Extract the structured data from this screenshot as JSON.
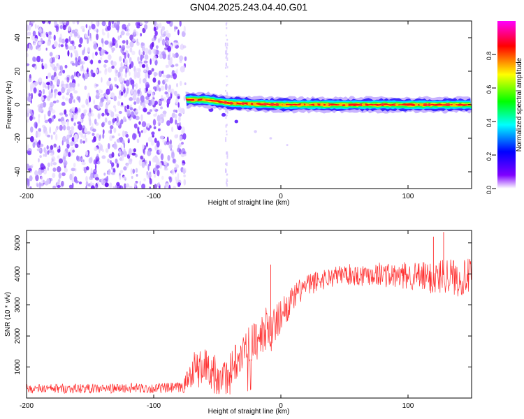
{
  "chart_data": [
    {
      "type": "heatmap",
      "title": "GN04.2025.243.04.40.G01",
      "xlabel": "Height of straight line (km)",
      "ylabel": "Frequency (Hz)",
      "xlim": [
        -200,
        150
      ],
      "ylim": [
        -50,
        50
      ],
      "xticks": [
        -200,
        -100,
        0,
        100
      ],
      "yticks": [
        -40,
        -20,
        0,
        20,
        40
      ],
      "noise_region_x": [
        -200,
        -75
      ],
      "faint_column_x": -43,
      "trace": [
        {
          "x": -75,
          "freq": 3,
          "amp": 0.8
        },
        {
          "x": -60,
          "freq": 3,
          "amp": 0.9
        },
        {
          "x": -50,
          "freq": 2,
          "amp": 0.9
        },
        {
          "x": -40,
          "freq": 1,
          "amp": 0.9
        },
        {
          "x": 0,
          "freq": 0,
          "amp": 1.0
        },
        {
          "x": 50,
          "freq": 0,
          "amp": 1.0
        },
        {
          "x": 100,
          "freq": 0,
          "amp": 1.0
        },
        {
          "x": 150,
          "freq": 0,
          "amp": 1.0
        }
      ],
      "echo_tail": [
        {
          "x": -55,
          "freq": -3
        },
        {
          "x": -45,
          "freq": -6
        },
        {
          "x": -35,
          "freq": -10
        },
        {
          "x": -20,
          "freq": -16
        },
        {
          "x": -8,
          "freq": -20
        },
        {
          "x": 5,
          "freq": -24
        }
      ],
      "colorbar": {
        "label": "Normalized spectral amplitude",
        "range": [
          0,
          1
        ],
        "ticks": [
          "0.0",
          "0.2",
          "0.4",
          "0.6",
          "0.8"
        ],
        "colors": [
          "#ffffff",
          "#7f00ff",
          "#0000ff",
          "#00ffff",
          "#00ff00",
          "#ffff00",
          "#ff0000",
          "#ff00ff"
        ]
      }
    },
    {
      "type": "line",
      "xlabel": "Height of straight line (km)",
      "ylabel": "SNR (10 * v/v)",
      "xlim": [
        -200,
        150
      ],
      "ylim": [
        0,
        5400
      ],
      "xticks": [
        -200,
        -100,
        0,
        100
      ],
      "yticks": [
        1000,
        2000,
        3000,
        4000,
        5000
      ],
      "color": "#ff3030",
      "series": [
        {
          "name": "SNR",
          "x": [
            -200,
            -180,
            -160,
            -140,
            -120,
            -100,
            -90,
            -80,
            -76,
            -72,
            -68,
            -64,
            -60,
            -56,
            -52,
            -48,
            -44,
            -40,
            -36,
            -32,
            -28,
            -24,
            -20,
            -16,
            -14,
            -12,
            -10,
            -8,
            -6,
            -4,
            -2,
            0,
            4,
            8,
            12,
            16,
            20,
            25,
            30,
            35,
            40,
            45,
            50,
            60,
            70,
            80,
            90,
            100,
            110,
            120,
            130,
            140,
            150
          ],
          "values": [
            300,
            300,
            310,
            300,
            320,
            310,
            320,
            330,
            400,
            700,
            1000,
            900,
            1100,
            800,
            900,
            600,
            700,
            900,
            1200,
            1500,
            1600,
            1700,
            1850,
            1900,
            2100,
            2200,
            2400,
            2000,
            2300,
            2400,
            2500,
            2700,
            2900,
            3100,
            3300,
            3500,
            3600,
            3700,
            3800,
            3850,
            3900,
            3950,
            4000,
            3950,
            4000,
            4000,
            3900,
            3950,
            3900,
            3850,
            4000,
            3850,
            3950
          ],
          "spread": [
            150,
            150,
            160,
            150,
            160,
            160,
            170,
            180,
            250,
            400,
            550,
            600,
            600,
            550,
            550,
            450,
            500,
            550,
            650,
            650,
            650,
            650,
            650,
            650,
            700,
            700,
            700,
            650,
            650,
            600,
            600,
            550,
            500,
            450,
            420,
            400,
            380,
            360,
            350,
            340,
            330,
            330,
            330,
            360,
            380,
            400,
            420,
            450,
            500,
            550,
            600,
            600,
            550
          ]
        }
      ],
      "spikes": [
        {
          "x": -8,
          "value": 4300
        },
        {
          "x": 120,
          "value": 5200
        },
        {
          "x": 128,
          "value": 5350
        }
      ]
    }
  ]
}
